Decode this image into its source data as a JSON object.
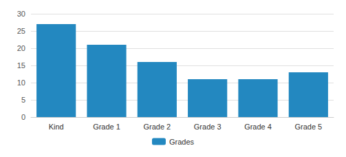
{
  "chart_data": {
    "type": "bar",
    "categories": [
      "Kind",
      "Grade 1",
      "Grade 2",
      "Grade 3",
      "Grade 4",
      "Grade 5"
    ],
    "series": [
      {
        "name": "Grades",
        "color": "#2388c0",
        "values": [
          27,
          21,
          16,
          11,
          11,
          13
        ]
      }
    ],
    "ylim": [
      0,
      30
    ],
    "yticks": [
      0,
      5,
      10,
      15,
      20,
      25,
      30
    ],
    "grid": true,
    "legend": "bottom"
  }
}
